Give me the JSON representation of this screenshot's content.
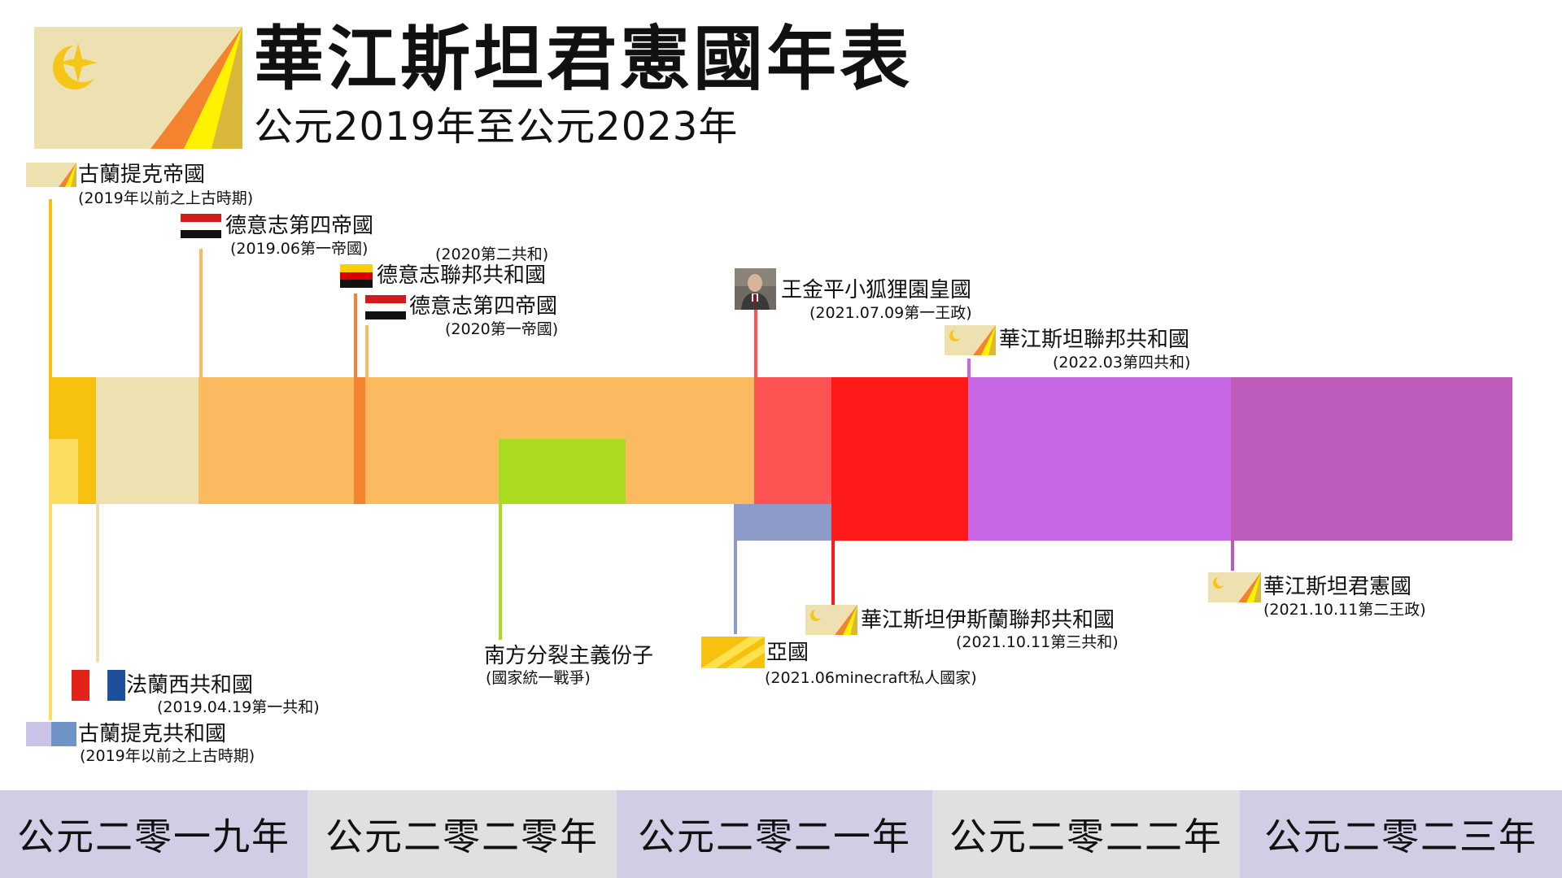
{
  "header": {
    "title": "華江斯坦君憲國年表",
    "subtitle": "公元2019年至公元2023年"
  },
  "entities": {
    "gulantike_empire": {
      "name": "古蘭提克帝國",
      "date": "(2019年以前之上古時期)"
    },
    "reich4_2019": {
      "name": "德意志第四帝國",
      "date": "(2019.06第一帝國)"
    },
    "frg_2020": {
      "name": "德意志聯邦共和國",
      "date": "(2020第二共和)"
    },
    "reich4_2020": {
      "name": "德意志第四帝國",
      "date": "(2020第一帝國)"
    },
    "wang_empire": {
      "name": "王金平小狐狸園皇國",
      "date": "(2021.07.09第一王政)"
    },
    "hjs_federal": {
      "name": "華江斯坦聯邦共和國",
      "date": "(2022.03第四共和)"
    },
    "hjs_constitutional": {
      "name": "華江斯坦君憲國",
      "date": "(2021.10.11第二王政)"
    },
    "hjs_islamic": {
      "name": "華江斯坦伊斯蘭聯邦共和國",
      "date": "(2021.10.11第三共和)"
    },
    "southern_split": {
      "name": "南方分裂主義份子",
      "date": "(國家統一戰爭)"
    },
    "ya_guo": {
      "name": "亞國",
      "date": "(2021.06minecraft私人國家)"
    },
    "france": {
      "name": "法蘭西共和國",
      "date": "(2019.04.19第一共和)"
    },
    "gulantike_republic": {
      "name": "古蘭提克共和國",
      "date": "(2019年以前之上古時期)"
    }
  },
  "years": [
    "公元二零一九年",
    "公元二零二零年",
    "公元二零二一年",
    "公元二零二二年",
    "公元二零二三年"
  ],
  "colors": {
    "empire_yellow": "#f7c20f",
    "beige": "#ede1b2",
    "orange": "#fbb960",
    "dark_orange": "#f48330",
    "green": "#abdb1e",
    "salmon": "#fe5353",
    "red": "#ff1a1a",
    "blue_grey": "#8d9bc8",
    "violet": "#c867e3",
    "purple": "#bc5bba",
    "year_bg_purple": "#d2cde4",
    "year_bg_grey": "#e0dfe2"
  }
}
